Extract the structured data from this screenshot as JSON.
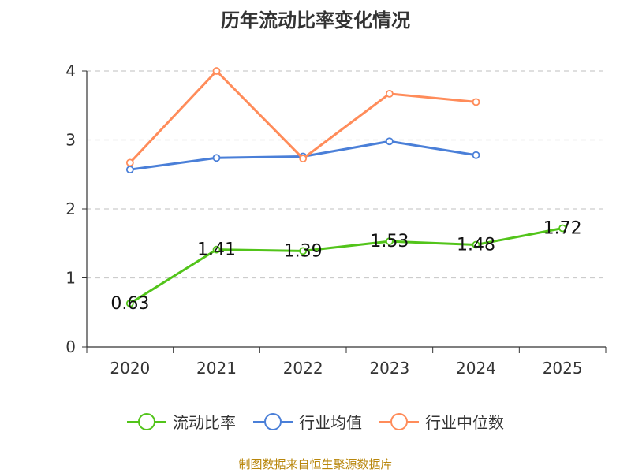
{
  "chart_data": {
    "type": "line",
    "title": "历年流动比率变化情况",
    "categories": [
      "2020",
      "2021",
      "2022",
      "2023",
      "2024",
      "2025"
    ],
    "ylim": [
      0,
      4
    ],
    "yticks": [
      0,
      1,
      2,
      3,
      4
    ],
    "grid": "horizontal dashed",
    "legend_position": "bottom",
    "series": [
      {
        "name": "流动比率",
        "color": "#52c41a",
        "values": [
          0.63,
          1.41,
          1.39,
          1.53,
          1.48,
          1.72
        ],
        "labels": [
          "0.63",
          "1.41",
          "1.39",
          "1.53",
          "1.48",
          "1.72"
        ]
      },
      {
        "name": "行业均值",
        "color": "#4a7fd8",
        "values": [
          2.57,
          2.74,
          2.76,
          2.98,
          2.78,
          null
        ]
      },
      {
        "name": "行业中位数",
        "color": "#ff8c5a",
        "values": [
          2.67,
          4.0,
          2.73,
          3.67,
          3.55,
          null
        ]
      }
    ]
  },
  "footer": {
    "source": "制图数据来自恒生聚源数据库"
  }
}
